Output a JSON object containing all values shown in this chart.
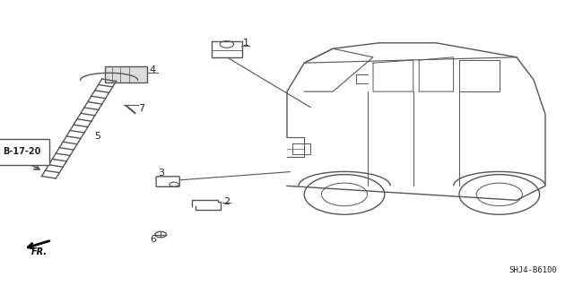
{
  "bg_color": "#ffffff",
  "line_color": "#555555",
  "label_color": "#222222",
  "diagram_code": "SHJ4-B6100",
  "ref_label": "B-17-20",
  "direction_label": "FR."
}
